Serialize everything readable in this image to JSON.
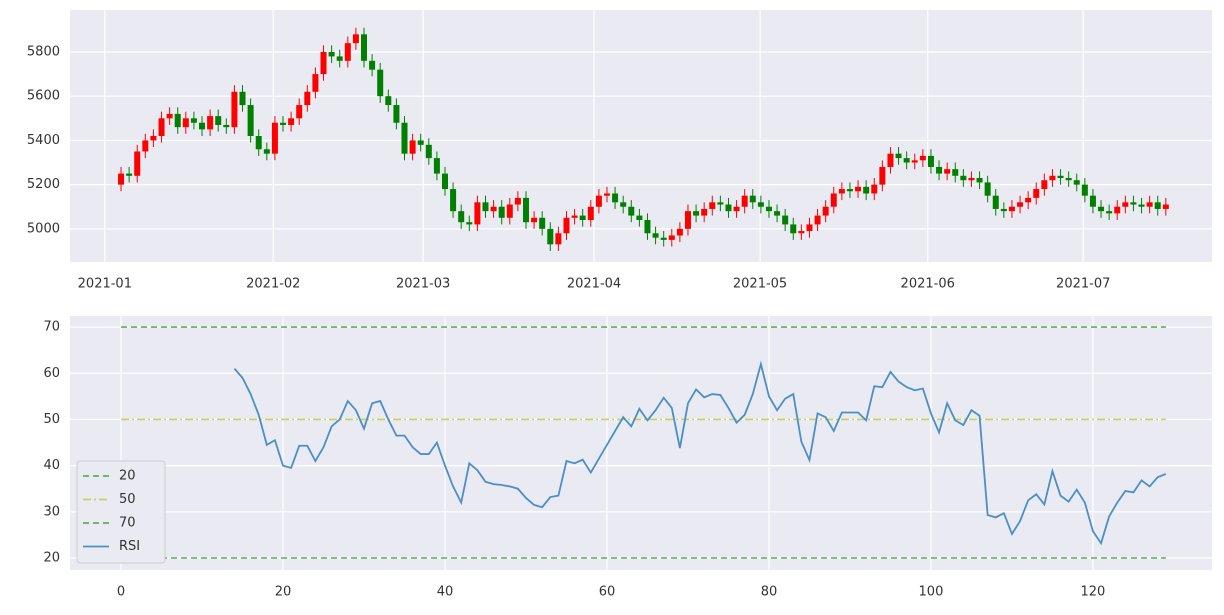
{
  "chart_data": [
    {
      "type": "candlestick",
      "x": [
        0,
        1,
        2,
        3,
        4,
        5,
        6,
        7,
        8,
        9,
        10,
        11,
        12,
        13,
        14,
        15,
        16,
        17,
        18,
        19,
        20,
        21,
        22,
        23,
        24,
        25,
        26,
        27,
        28,
        29,
        30,
        31,
        32,
        33,
        34,
        35,
        36,
        37,
        38,
        39,
        40,
        41,
        42,
        43,
        44,
        45,
        46,
        47,
        48,
        49,
        50,
        51,
        52,
        53,
        54,
        55,
        56,
        57,
        58,
        59,
        60,
        61,
        62,
        63,
        64,
        65,
        66,
        67,
        68,
        69,
        70,
        71,
        72,
        73,
        74,
        75,
        76,
        77,
        78,
        79,
        80,
        81,
        82,
        83,
        84,
        85,
        86,
        87,
        88,
        89,
        90,
        91,
        92,
        93,
        94,
        95,
        96,
        97,
        98,
        99,
        100,
        101,
        102,
        103,
        104,
        105,
        106,
        107,
        108,
        109,
        110,
        111,
        112,
        113,
        114,
        115,
        116,
        117,
        118,
        119,
        120,
        121,
        122,
        123,
        124,
        125,
        126,
        127,
        128,
        129
      ],
      "open": [
        5200,
        5250,
        5240,
        5350,
        5400,
        5420,
        5500,
        5520,
        5460,
        5500,
        5480,
        5450,
        5510,
        5470,
        5460,
        5620,
        5560,
        5420,
        5360,
        5340,
        5480,
        5470,
        5500,
        5560,
        5620,
        5700,
        5800,
        5780,
        5760,
        5840,
        5880,
        5760,
        5720,
        5600,
        5560,
        5480,
        5340,
        5400,
        5380,
        5320,
        5250,
        5180,
        5080,
        5030,
        5020,
        5120,
        5080,
        5100,
        5050,
        5110,
        5140,
        5030,
        5050,
        5000,
        4930,
        4980,
        5050,
        5060,
        5040,
        5100,
        5150,
        5160,
        5120,
        5100,
        5060,
        5040,
        4980,
        4960,
        4950,
        4970,
        5000,
        5080,
        5060,
        5090,
        5120,
        5110,
        5080,
        5100,
        5150,
        5120,
        5100,
        5080,
        5060,
        5020,
        4980,
        4990,
        5020,
        5060,
        5100,
        5160,
        5180,
        5170,
        5190,
        5160,
        5200,
        5280,
        5340,
        5320,
        5300,
        5310,
        5330,
        5280,
        5250,
        5270,
        5240,
        5220,
        5230,
        5210,
        5150,
        5090,
        5080,
        5100,
        5120,
        5140,
        5180,
        5220,
        5240,
        5230,
        5220,
        5200,
        5150,
        5100,
        5080,
        5070,
        5100,
        5120,
        5110,
        5100,
        5120,
        5090
      ],
      "high": [
        5280,
        5280,
        5380,
        5430,
        5450,
        5530,
        5550,
        5550,
        5530,
        5530,
        5510,
        5540,
        5540,
        5500,
        5650,
        5650,
        5590,
        5450,
        5390,
        5510,
        5510,
        5530,
        5590,
        5650,
        5730,
        5830,
        5830,
        5810,
        5870,
        5910,
        5910,
        5790,
        5750,
        5630,
        5590,
        5510,
        5430,
        5430,
        5410,
        5350,
        5280,
        5210,
        5110,
        5060,
        5150,
        5150,
        5130,
        5130,
        5140,
        5170,
        5170,
        5080,
        5080,
        5030,
        5010,
        5080,
        5090,
        5090,
        5130,
        5180,
        5190,
        5190,
        5150,
        5130,
        5090,
        5070,
        5010,
        4990,
        5000,
        5030,
        5110,
        5110,
        5120,
        5150,
        5150,
        5140,
        5130,
        5180,
        5180,
        5150,
        5130,
        5110,
        5090,
        5050,
        5020,
        5050,
        5090,
        5130,
        5190,
        5210,
        5210,
        5220,
        5220,
        5230,
        5310,
        5370,
        5370,
        5350,
        5340,
        5360,
        5360,
        5310,
        5300,
        5300,
        5270,
        5260,
        5260,
        5240,
        5180,
        5120,
        5130,
        5150,
        5170,
        5210,
        5250,
        5270,
        5270,
        5260,
        5250,
        5230,
        5180,
        5130,
        5110,
        5130,
        5150,
        5150,
        5140,
        5150,
        5150,
        5140
      ],
      "low": [
        5170,
        5210,
        5210,
        5320,
        5370,
        5390,
        5470,
        5430,
        5430,
        5450,
        5420,
        5420,
        5440,
        5430,
        5430,
        5530,
        5390,
        5330,
        5310,
        5310,
        5440,
        5440,
        5470,
        5530,
        5590,
        5670,
        5750,
        5730,
        5730,
        5810,
        5730,
        5690,
        5570,
        5530,
        5450,
        5310,
        5310,
        5350,
        5290,
        5220,
        5150,
        5050,
        5000,
        4990,
        4990,
        5050,
        5050,
        5020,
        5020,
        5080,
        5000,
        5000,
        4970,
        4900,
        4900,
        4950,
        5020,
        5010,
        5010,
        5070,
        5120,
        5090,
        5070,
        5030,
        5010,
        4950,
        4930,
        4920,
        4920,
        4940,
        4970,
        5030,
        5030,
        5060,
        5080,
        5050,
        5050,
        5070,
        5090,
        5070,
        5050,
        5030,
        4990,
        4950,
        4950,
        4960,
        4990,
        5030,
        5070,
        5130,
        5140,
        5140,
        5130,
        5130,
        5170,
        5250,
        5290,
        5270,
        5270,
        5280,
        5250,
        5220,
        5220,
        5210,
        5190,
        5190,
        5180,
        5120,
        5060,
        5050,
        5050,
        5070,
        5090,
        5110,
        5150,
        5190,
        5200,
        5190,
        5170,
        5120,
        5070,
        5050,
        5040,
        5040,
        5070,
        5080,
        5070,
        5070,
        5060,
        5060
      ],
      "close": [
        5250,
        5240,
        5350,
        5400,
        5420,
        5500,
        5520,
        5460,
        5500,
        5480,
        5450,
        5510,
        5470,
        5460,
        5620,
        5560,
        5420,
        5360,
        5340,
        5480,
        5470,
        5500,
        5560,
        5620,
        5700,
        5800,
        5780,
        5760,
        5840,
        5880,
        5760,
        5720,
        5600,
        5560,
        5480,
        5340,
        5400,
        5380,
        5320,
        5250,
        5180,
        5080,
        5030,
        5020,
        5120,
        5080,
        5100,
        5050,
        5110,
        5140,
        5030,
        5050,
        5000,
        4930,
        4980,
        5050,
        5060,
        5040,
        5100,
        5150,
        5160,
        5120,
        5100,
        5060,
        5040,
        4980,
        4960,
        4950,
        4970,
        5000,
        5080,
        5060,
        5090,
        5120,
        5110,
        5080,
        5100,
        5150,
        5120,
        5100,
        5080,
        5060,
        5020,
        4980,
        4990,
        5020,
        5060,
        5100,
        5160,
        5180,
        5170,
        5190,
        5160,
        5200,
        5280,
        5340,
        5320,
        5300,
        5310,
        5330,
        5280,
        5250,
        5270,
        5240,
        5220,
        5230,
        5210,
        5150,
        5090,
        5080,
        5100,
        5120,
        5140,
        5180,
        5220,
        5240,
        5230,
        5220,
        5200,
        5150,
        5100,
        5080,
        5070,
        5100,
        5120,
        5110,
        5100,
        5120,
        5090,
        5110
      ],
      "up_color": "#ff0000",
      "down_color": "#008000",
      "xlim": [
        -6.3,
        134.7
      ],
      "xticks": [
        {
          "value": -2,
          "label": "2021-01"
        },
        {
          "value": 18.8,
          "label": "2021-02"
        },
        {
          "value": 37.3,
          "label": "2021-03"
        },
        {
          "value": 58.4,
          "label": "2021-04"
        },
        {
          "value": 78.9,
          "label": "2021-05"
        },
        {
          "value": 99.6,
          "label": "2021-06"
        },
        {
          "value": 118.8,
          "label": "2021-07"
        }
      ],
      "ylim": [
        4850,
        5990
      ],
      "yticks": [
        5000,
        5200,
        5400,
        5600,
        5800
      ],
      "grid": true
    },
    {
      "type": "line",
      "x": [
        0,
        1,
        2,
        3,
        4,
        5,
        6,
        7,
        8,
        9,
        10,
        11,
        12,
        13,
        14,
        15,
        16,
        17,
        18,
        19,
        20,
        21,
        22,
        23,
        24,
        25,
        26,
        27,
        28,
        29,
        30,
        31,
        32,
        33,
        34,
        35,
        36,
        37,
        38,
        39,
        40,
        41,
        42,
        43,
        44,
        45,
        46,
        47,
        48,
        49,
        50,
        51,
        52,
        53,
        54,
        55,
        56,
        57,
        58,
        59,
        60,
        61,
        62,
        63,
        64,
        65,
        66,
        67,
        68,
        69,
        70,
        71,
        72,
        73,
        74,
        75,
        76,
        77,
        78,
        79,
        80,
        81,
        82,
        83,
        84,
        85,
        86,
        87,
        88,
        89,
        90,
        91,
        92,
        93,
        94,
        95,
        96,
        97,
        98,
        99,
        100,
        101,
        102,
        103,
        104,
        105,
        106,
        107,
        108,
        109,
        110,
        111,
        112,
        113,
        114,
        115,
        116,
        117,
        118,
        119,
        120,
        121,
        122,
        123,
        124,
        125,
        126,
        127,
        128,
        129
      ],
      "hlines": [
        {
          "name": "20",
          "value": 20,
          "color": "#5fae5f",
          "dash": "6,4"
        },
        {
          "name": "50",
          "value": 50,
          "color": "#c9d15c",
          "dash": "8,3,2,3"
        },
        {
          "name": "70",
          "value": 70,
          "color": "#5fae5f",
          "dash": "6,4"
        }
      ],
      "series": [
        {
          "name": "RSI",
          "color": "#4c8fc4",
          "values": [
            null,
            null,
            null,
            null,
            null,
            null,
            null,
            null,
            null,
            null,
            null,
            null,
            null,
            null,
            61,
            59,
            55.5,
            51,
            44.5,
            45.5,
            40,
            39.5,
            44.3,
            44.3,
            41,
            44,
            48.5,
            50,
            54,
            52,
            48,
            53.5,
            54,
            50,
            46.5,
            46.5,
            44,
            42.5,
            42.5,
            45,
            40,
            35.5,
            32,
            40.5,
            39,
            36.5,
            36,
            35.8,
            35.5,
            35,
            33,
            31.5,
            31,
            33.2,
            33.5,
            41,
            40.5,
            41.3,
            38.5,
            41.5,
            44.5,
            47.5,
            50.5,
            48.5,
            52.3,
            49.8,
            52,
            54.7,
            52.5,
            43.8,
            53.5,
            56.5,
            54.8,
            55.5,
            55.3,
            52.5,
            49.3,
            51,
            55.5,
            62,
            55,
            52,
            54.5,
            55.5,
            45.2,
            41.2,
            51.3,
            50.5,
            47.5,
            51.5,
            51.5,
            51.5,
            49.8,
            57.2,
            57,
            60.3,
            58.2,
            57,
            56.3,
            56.7,
            51.3,
            47.2,
            53.5,
            49.8,
            48.8,
            52,
            50.8,
            29.3,
            28.8,
            29.7,
            25.2,
            28,
            32.5,
            33.8,
            31.6,
            38.8,
            33.5,
            32.2,
            34.8,
            32,
            25.8,
            23.2,
            29,
            32,
            34.5,
            34.2,
            36.8,
            35.5,
            37.5,
            38.2
          ]
        }
      ],
      "xlim": [
        -6.3,
        134.7
      ],
      "xticks": [
        0,
        20,
        40,
        60,
        80,
        100,
        120
      ],
      "ylim": [
        17.4,
        72.4
      ],
      "yticks": [
        20,
        30,
        40,
        50,
        60,
        70
      ],
      "grid": true,
      "legend": "lower left"
    }
  ]
}
